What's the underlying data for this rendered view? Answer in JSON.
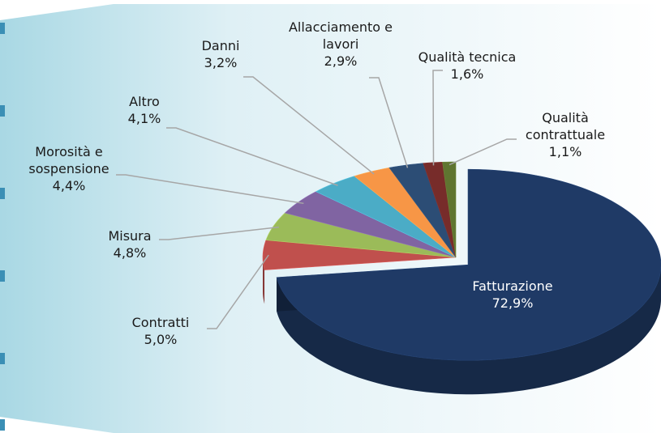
{
  "chart_data": {
    "type": "pie",
    "categories": [
      "Fatturazione",
      "Contratti",
      "Misura",
      "Morosità e sospensione",
      "Altro",
      "Danni",
      "Allacciamento e lavori",
      "Qualità tecnica",
      "Qualità contrattuale"
    ],
    "values": [
      72.9,
      5.0,
      4.8,
      4.4,
      4.1,
      3.2,
      2.9,
      1.6,
      1.1
    ],
    "value_labels": [
      "72,9%",
      "5,0%",
      "4,8%",
      "4,4%",
      "4,1%",
      "3,2%",
      "2,9%",
      "1,6%",
      "1,1%"
    ],
    "colors": [
      "#1f3a66",
      "#c0504d",
      "#9bbb59",
      "#8064a2",
      "#4bacc6",
      "#f79646",
      "#2c4d75",
      "#772c2a",
      "#5f7530"
    ],
    "three_d": true
  }
}
